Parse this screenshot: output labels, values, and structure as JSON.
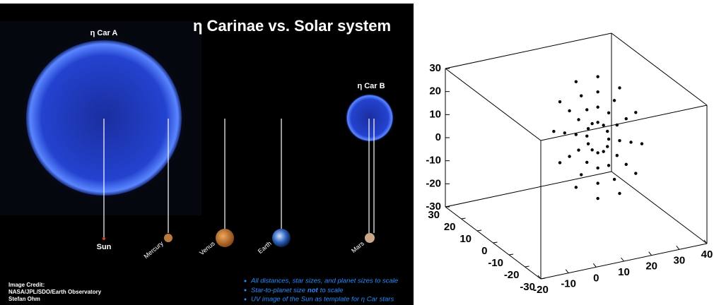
{
  "illustration": {
    "title": "η Carinae vs. Solar system",
    "star_a": "η Car A",
    "star_b": "η Car B",
    "bodies": [
      "Sun",
      "Mercury",
      "Venus",
      "Earth",
      "Mars"
    ],
    "credit": [
      "Image Credit:",
      "NASA/JPL/SDO/Earth Observatory",
      "Stefan Ohm"
    ],
    "notes": [
      [
        "All distances, star sizes, and planet sizes to scale"
      ],
      [
        "Star-to-planet size",
        "not",
        "to scale"
      ],
      [
        "UV image of the Sun as template for η Car stars"
      ]
    ]
  },
  "chart_data": {
    "type": "scatter3d",
    "color": "#000000",
    "xlim": [
      -20,
      40
    ],
    "ylim": [
      -30,
      30
    ],
    "zlim": [
      -30,
      30
    ],
    "xticks": [
      -20,
      -10,
      0,
      10,
      20,
      30,
      40
    ],
    "yticks": [
      30,
      20,
      10,
      0,
      -10,
      -20,
      -30
    ],
    "zticks": [
      30,
      20,
      10,
      0,
      -10,
      -20,
      -30
    ],
    "x": [
      25.5,
      25.2,
      24.3,
      23,
      21.7,
      20.8,
      20.5,
      20.8,
      21.7,
      23,
      24.3,
      25.2,
      28,
      27.4,
      25.5,
      23,
      20.5,
      18.6,
      18,
      18.6,
      20.5,
      23,
      25.5,
      27.4,
      30.6,
      29.5,
      26.8,
      23,
      19.2,
      16.5,
      15.4,
      16.5,
      19.2,
      23,
      26.8,
      29.5,
      33.1,
      31.7,
      28,
      23,
      18,
      14.3,
      12.9,
      14.3,
      18,
      23,
      28,
      31.7
    ],
    "y": [
      6.5,
      6.8,
      7.7,
      9,
      10.3,
      11.2,
      11.5,
      11.2,
      10.3,
      9,
      7.7,
      6.8,
      4,
      4.6,
      6.5,
      9,
      11.5,
      13.4,
      14,
      13.4,
      11.5,
      9,
      6.5,
      4.6,
      1.4,
      2.5,
      5.2,
      9,
      12.8,
      15.5,
      16.6,
      15.5,
      12.8,
      9,
      5.2,
      2.5,
      -1.1,
      0.3,
      4,
      9,
      14,
      17.7,
      19.1,
      17.7,
      14,
      9,
      4,
      0.3
    ],
    "z": [
      0,
      3.3,
      5.7,
      6.6,
      5.7,
      3.3,
      0,
      -3.3,
      -5.7,
      -6.6,
      -5.7,
      -3.3,
      0,
      6.6,
      11.4,
      13.2,
      11.4,
      6.6,
      0,
      -6.6,
      -11.4,
      -13.2,
      -11.4,
      -6.6,
      0,
      9.9,
      17.1,
      19.8,
      17.1,
      9.9,
      0,
      -9.9,
      -17.1,
      -19.8,
      -17.1,
      -9.9,
      0,
      13.2,
      22.9,
      26.4,
      22.9,
      13.2,
      0,
      -13.2,
      -22.9,
      -26.4,
      -22.9,
      -13.2
    ]
  }
}
